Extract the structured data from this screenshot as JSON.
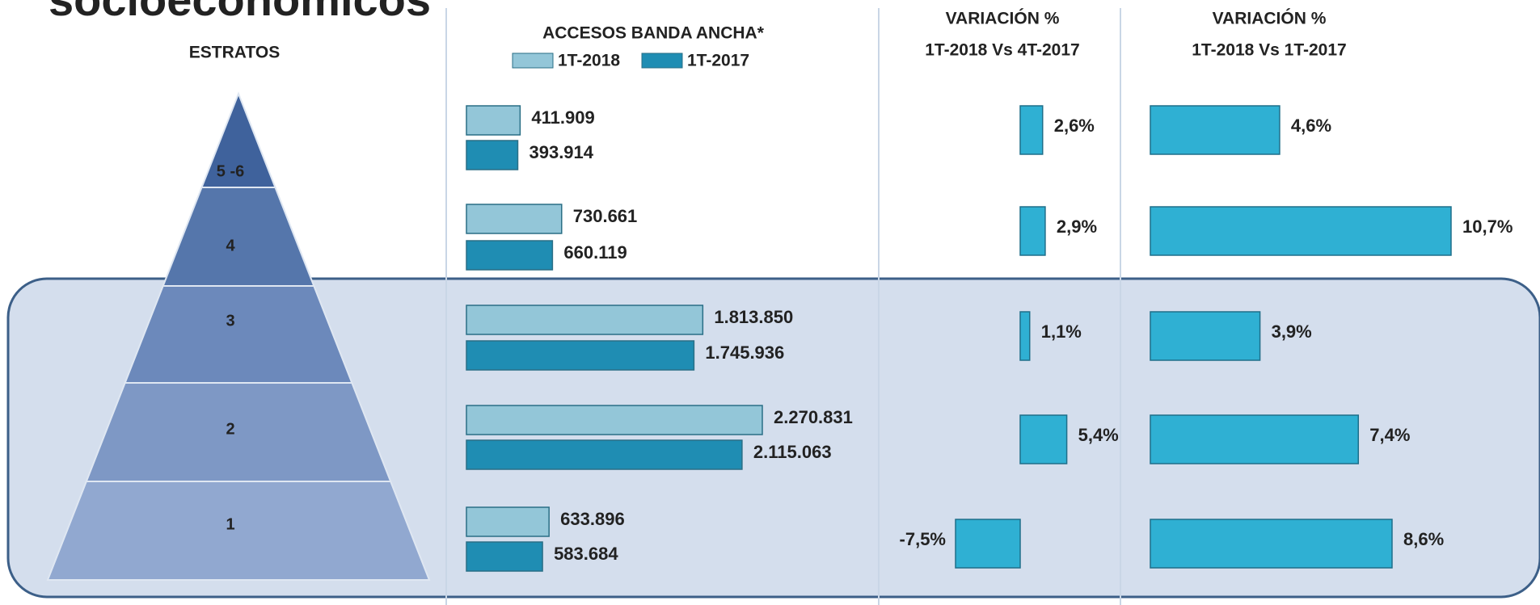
{
  "page_title": "socioeconómicos",
  "chart_data": [
    {
      "type": "hbar",
      "category_title": "ESTRATOS",
      "title": "ACCESOS BANDA ANCHA*",
      "categories": [
        "5 -6",
        "4",
        "3",
        "2",
        "1"
      ],
      "series": [
        {
          "name": "1T-2018",
          "color": "#93c6d8",
          "values": [
            411909,
            730661,
            1813850,
            2270831,
            633896
          ],
          "value_labels": [
            "411.909",
            "730.661",
            "1.813.850",
            "2.270.831",
            "633.896"
          ]
        },
        {
          "name": "1T-2017",
          "color": "#1f8db3",
          "values": [
            393914,
            660119,
            1745936,
            2115063,
            583684
          ],
          "value_labels": [
            "393.914",
            "660.119",
            "1.745.936",
            "2.115.063",
            "583.684"
          ]
        }
      ]
    },
    {
      "type": "hbar",
      "title": "VARIACIÓN %",
      "subtitle": "1T-2018 Vs 4T-2017",
      "color": "#2fb0d3",
      "values": [
        2.6,
        2.9,
        1.1,
        5.4,
        -7.5
      ],
      "value_labels": [
        "2,6%",
        "2,9%",
        "1,1%",
        "5,4%",
        "-7,5%"
      ]
    },
    {
      "type": "hbar",
      "title": "VARIACIÓN %",
      "subtitle": "1T-2018 Vs 1T-2017",
      "color": "#2fb0d3",
      "values": [
        4.6,
        10.7,
        3.9,
        7.4,
        8.6
      ],
      "value_labels": [
        "4,6%",
        "10,7%",
        "3,9%",
        "7,4%",
        "8,6%"
      ]
    }
  ]
}
